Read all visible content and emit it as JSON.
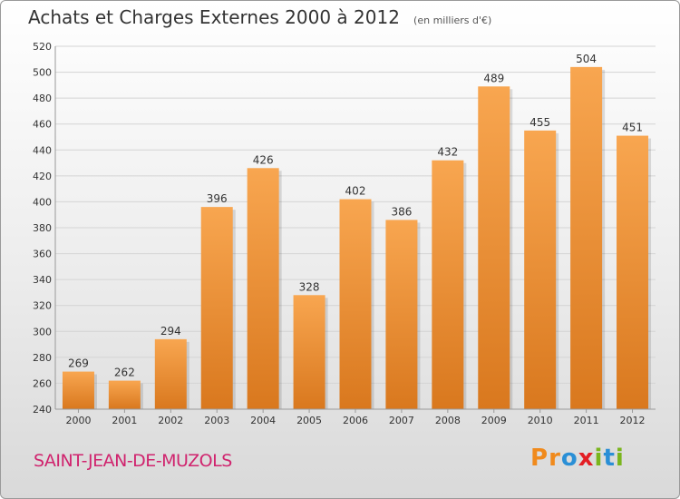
{
  "title": "Achats et Charges Externes 2000 à 2012",
  "unit": "(en milliers d'€)",
  "commune": "SAINT-JEAN-DE-MUZOLS",
  "logo": {
    "text": "Proxiti",
    "letters": [
      "P",
      "r",
      "o",
      "x",
      "i",
      "t",
      "i"
    ],
    "colors": [
      "#f08a1c",
      "#f08a1c",
      "#2a8fd6",
      "#e31e24",
      "#7ab51d",
      "#2a8fd6",
      "#7ab51d"
    ]
  },
  "colors": {
    "bar_light": "#f7a54e",
    "bar_dark": "#d8781f",
    "title": "#333333",
    "commune": "#d0246e"
  },
  "chart_data": {
    "type": "bar",
    "categories": [
      "2000",
      "2001",
      "2002",
      "2003",
      "2004",
      "2005",
      "2006",
      "2007",
      "2008",
      "2009",
      "2010",
      "2011",
      "2012"
    ],
    "values": [
      269,
      262,
      294,
      396,
      426,
      328,
      402,
      386,
      432,
      489,
      455,
      504,
      451
    ],
    "title": "Achats et Charges Externes 2000 à 2012",
    "ylim": [
      240,
      520
    ],
    "yticks": [
      240,
      260,
      280,
      300,
      320,
      340,
      360,
      380,
      400,
      420,
      440,
      460,
      480,
      500,
      520
    ],
    "grid": true,
    "data_labels": true
  }
}
